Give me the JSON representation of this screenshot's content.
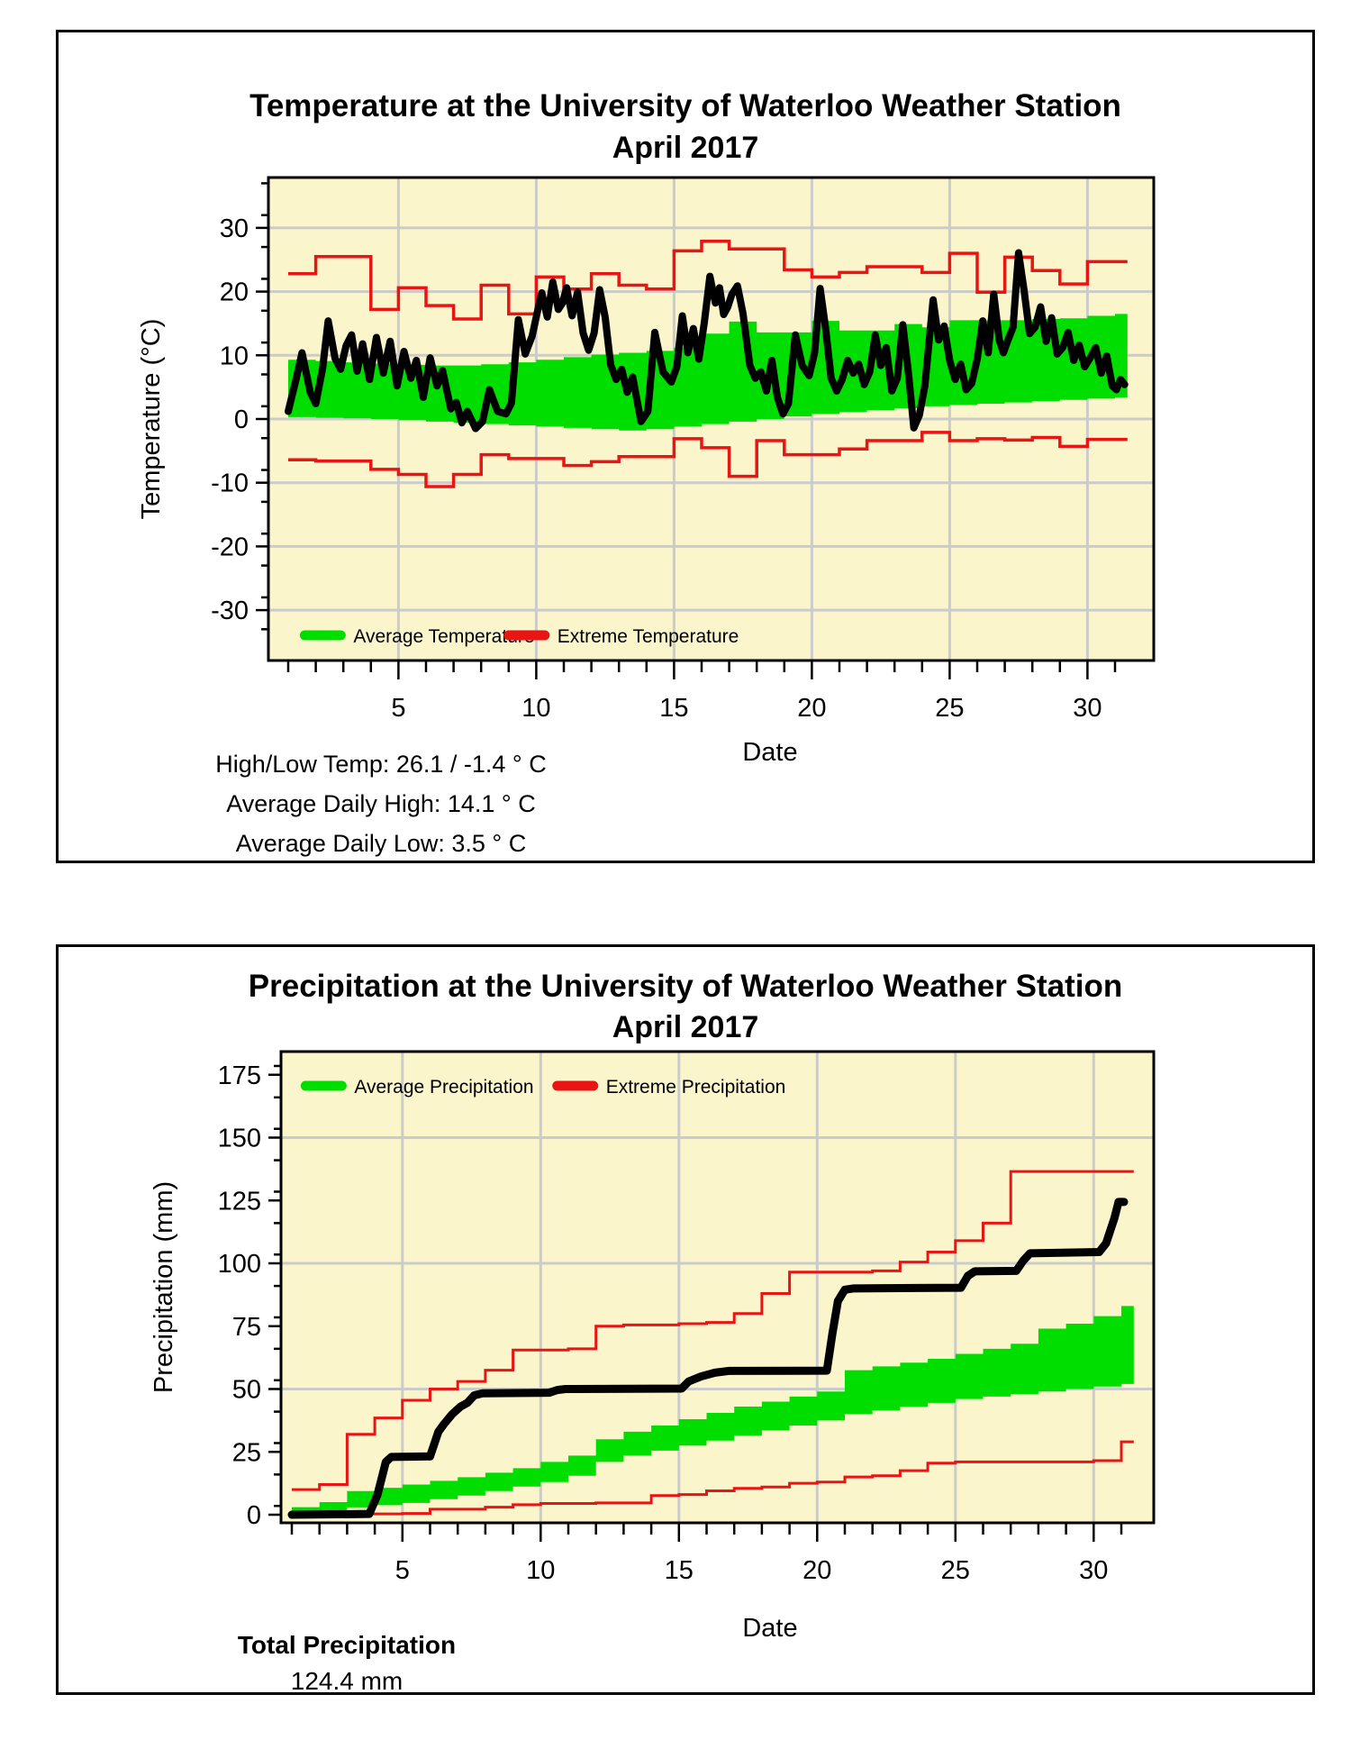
{
  "colors": {
    "plot_bg": "#FBF5CC",
    "grid": "#CBCBCB",
    "average_green": "#00DE00",
    "extreme_red": "#E91414",
    "actual_black": "#000000",
    "axis_black": "#000000"
  },
  "chart_data": [
    {
      "type": "line",
      "title_line1": "Temperature at the University of Waterloo Weather Station",
      "title_line2": "April 2017",
      "xlabel": "Date",
      "ylabel": "Temperature (°C)",
      "ylim": [
        -38,
        38
      ],
      "xlim": [
        1,
        31
      ],
      "yticks": [
        -30,
        -20,
        -10,
        0,
        10,
        20,
        30
      ],
      "yminor_step": 5,
      "xticks_major": [
        5,
        10,
        15,
        20,
        25,
        30
      ],
      "grid": "on",
      "legend_position": "bottom-inside",
      "legend": [
        {
          "label": "Average Temperature",
          "color": "average_green"
        },
        {
          "label": "Extreme Temperature",
          "color": "extreme_red"
        }
      ],
      "days": [
        1,
        2,
        3,
        4,
        5,
        6,
        7,
        8,
        9,
        10,
        11,
        12,
        13,
        14,
        15,
        16,
        17,
        18,
        19,
        20,
        21,
        22,
        23,
        24,
        25,
        26,
        27,
        28,
        29,
        30,
        31
      ],
      "normal_low": [
        0.3,
        0.2,
        0.1,
        0.0,
        -0.2,
        -0.4,
        -0.6,
        -0.8,
        -1.0,
        -1.2,
        -1.4,
        -1.6,
        -1.8,
        -1.6,
        -1.2,
        -0.8,
        -0.4,
        0.0,
        0.4,
        0.8,
        1.1,
        1.4,
        1.7,
        2.0,
        2.2,
        2.4,
        2.6,
        2.8,
        3.0,
        3.2,
        3.4
      ],
      "normal_high": [
        9.3,
        9.1,
        8.9,
        8.7,
        8.5,
        8.4,
        8.4,
        8.6,
        8.9,
        9.3,
        9.7,
        10.1,
        10.4,
        10.7,
        11.2,
        13.4,
        15.3,
        13.6,
        13.6,
        15.4,
        13.9,
        13.9,
        14.9,
        14.4,
        15.5,
        15.5,
        15.5,
        15.7,
        15.8,
        16.2,
        16.5
      ],
      "extreme_high": [
        22.8,
        25.5,
        25.5,
        17.2,
        20.6,
        17.8,
        15.7,
        21.0,
        16.5,
        22.3,
        20.4,
        22.8,
        21.0,
        20.4,
        26.4,
        27.9,
        26.7,
        26.7,
        23.4,
        22.3,
        23.0,
        23.9,
        23.9,
        23.0,
        26.0,
        19.9,
        25.4,
        23.3,
        21.2,
        24.7,
        24.7
      ],
      "extreme_low": [
        -6.4,
        -6.6,
        -6.6,
        -7.9,
        -8.7,
        -10.6,
        -8.7,
        -5.6,
        -6.2,
        -6.2,
        -7.3,
        -6.7,
        -5.9,
        -5.9,
        -3.1,
        -4.5,
        -9.0,
        -3.4,
        -5.6,
        -5.6,
        -4.7,
        -3.4,
        -3.4,
        -2.1,
        -3.4,
        -3.1,
        -3.3,
        -2.9,
        -4.3,
        -3.2,
        -3.2
      ],
      "actual": [
        [
          1.0,
          1.2
        ],
        [
          1.3,
          6.5
        ],
        [
          1.5,
          10.4
        ],
        [
          1.8,
          4.2
        ],
        [
          2.0,
          2.4
        ],
        [
          2.25,
          8.0
        ],
        [
          2.45,
          15.4
        ],
        [
          2.7,
          9.5
        ],
        [
          2.9,
          7.8
        ],
        [
          3.1,
          11.5
        ],
        [
          3.3,
          13.2
        ],
        [
          3.5,
          7.5
        ],
        [
          3.7,
          11.8
        ],
        [
          3.95,
          6.2
        ],
        [
          4.2,
          12.8
        ],
        [
          4.45,
          7.2
        ],
        [
          4.7,
          12.2
        ],
        [
          4.95,
          5.2
        ],
        [
          5.2,
          10.6
        ],
        [
          5.45,
          6.4
        ],
        [
          5.65,
          9.2
        ],
        [
          5.9,
          3.4
        ],
        [
          6.15,
          9.6
        ],
        [
          6.4,
          5.2
        ],
        [
          6.6,
          7.6
        ],
        [
          6.9,
          1.6
        ],
        [
          7.1,
          2.6
        ],
        [
          7.3,
          -0.6
        ],
        [
          7.5,
          1.2
        ],
        [
          7.8,
          -1.5
        ],
        [
          8.05,
          -0.4
        ],
        [
          8.3,
          4.6
        ],
        [
          8.6,
          1.2
        ],
        [
          8.9,
          0.8
        ],
        [
          9.1,
          2.5
        ],
        [
          9.35,
          15.6
        ],
        [
          9.6,
          10.2
        ],
        [
          9.85,
          13.0
        ],
        [
          10.05,
          17.0
        ],
        [
          10.2,
          19.8
        ],
        [
          10.4,
          16.0
        ],
        [
          10.6,
          21.5
        ],
        [
          10.8,
          17.2
        ],
        [
          10.95,
          18.2
        ],
        [
          11.1,
          20.6
        ],
        [
          11.3,
          16.2
        ],
        [
          11.5,
          19.9
        ],
        [
          11.7,
          13.5
        ],
        [
          11.9,
          10.8
        ],
        [
          12.1,
          13.5
        ],
        [
          12.3,
          20.3
        ],
        [
          12.5,
          16.0
        ],
        [
          12.7,
          8.5
        ],
        [
          12.9,
          6.2
        ],
        [
          13.1,
          7.8
        ],
        [
          13.3,
          4.2
        ],
        [
          13.5,
          6.6
        ],
        [
          13.8,
          -0.4
        ],
        [
          14.05,
          1.2
        ],
        [
          14.3,
          13.6
        ],
        [
          14.6,
          7.4
        ],
        [
          14.9,
          5.8
        ],
        [
          15.1,
          8.2
        ],
        [
          15.3,
          16.2
        ],
        [
          15.5,
          10.4
        ],
        [
          15.7,
          14.2
        ],
        [
          15.9,
          9.4
        ],
        [
          16.1,
          15.2
        ],
        [
          16.3,
          22.4
        ],
        [
          16.5,
          18.2
        ],
        [
          16.65,
          20.6
        ],
        [
          16.8,
          16.4
        ],
        [
          16.95,
          17.6
        ],
        [
          17.1,
          19.6
        ],
        [
          17.3,
          20.9
        ],
        [
          17.5,
          16.6
        ],
        [
          17.75,
          8.4
        ],
        [
          17.95,
          6.4
        ],
        [
          18.15,
          7.4
        ],
        [
          18.35,
          4.4
        ],
        [
          18.55,
          9.2
        ],
        [
          18.75,
          3.4
        ],
        [
          18.95,
          0.8
        ],
        [
          19.15,
          2.4
        ],
        [
          19.4,
          13.2
        ],
        [
          19.65,
          8.4
        ],
        [
          19.9,
          6.8
        ],
        [
          20.1,
          10.4
        ],
        [
          20.3,
          20.5
        ],
        [
          20.5,
          14.2
        ],
        [
          20.7,
          6.4
        ],
        [
          20.9,
          4.4
        ],
        [
          21.1,
          6.2
        ],
        [
          21.3,
          9.2
        ],
        [
          21.5,
          7.2
        ],
        [
          21.7,
          8.6
        ],
        [
          21.9,
          5.4
        ],
        [
          22.1,
          7.4
        ],
        [
          22.3,
          13.2
        ],
        [
          22.5,
          8.4
        ],
        [
          22.7,
          11.2
        ],
        [
          22.9,
          4.4
        ],
        [
          23.1,
          6.4
        ],
        [
          23.3,
          14.8
        ],
        [
          23.5,
          7.4
        ],
        [
          23.7,
          -1.4
        ],
        [
          23.9,
          0.6
        ],
        [
          24.1,
          5.2
        ],
        [
          24.4,
          18.7
        ],
        [
          24.6,
          12.4
        ],
        [
          24.8,
          14.6
        ],
        [
          25.0,
          9.2
        ],
        [
          25.2,
          6.2
        ],
        [
          25.4,
          8.6
        ],
        [
          25.6,
          4.6
        ],
        [
          25.8,
          5.6
        ],
        [
          26.0,
          9.4
        ],
        [
          26.2,
          15.4
        ],
        [
          26.4,
          10.4
        ],
        [
          26.6,
          19.6
        ],
        [
          26.8,
          12.4
        ],
        [
          26.95,
          10.4
        ],
        [
          27.1,
          12.2
        ],
        [
          27.3,
          14.4
        ],
        [
          27.5,
          26.1
        ],
        [
          27.7,
          20.2
        ],
        [
          27.9,
          13.4
        ],
        [
          28.1,
          14.4
        ],
        [
          28.3,
          17.6
        ],
        [
          28.5,
          12.2
        ],
        [
          28.7,
          15.9
        ],
        [
          28.9,
          10.2
        ],
        [
          29.1,
          11.2
        ],
        [
          29.3,
          13.6
        ],
        [
          29.5,
          9.2
        ],
        [
          29.7,
          11.6
        ],
        [
          29.9,
          8.2
        ],
        [
          30.1,
          9.6
        ],
        [
          30.3,
          11.2
        ],
        [
          30.5,
          7.2
        ],
        [
          30.7,
          9.9
        ],
        [
          30.9,
          5.2
        ],
        [
          31.05,
          4.6
        ],
        [
          31.2,
          6.2
        ],
        [
          31.35,
          5.4
        ]
      ],
      "stats": [
        "High/Low Temp:  26.1 / -1.4 ° C",
        "Average Daily High:  14.1 ° C",
        "Average Daily Low:  3.5 ° C"
      ]
    },
    {
      "type": "line",
      "title_line1": "Precipitation at the University of Waterloo Weather Station",
      "title_line2": "April 2017",
      "xlabel": "Date",
      "ylabel": "Precipitation (mm)",
      "ylim": [
        -9,
        179
      ],
      "xlim": [
        1,
        31
      ],
      "yticks": [
        0,
        25,
        50,
        75,
        100,
        125,
        150,
        175
      ],
      "gridlines_y": [
        50,
        100,
        150
      ],
      "xticks_major": [
        5,
        10,
        15,
        20,
        25,
        30
      ],
      "grid": "on",
      "legend_position": "top-inside",
      "legend": [
        {
          "label": "Average Precipitation",
          "color": "average_green"
        },
        {
          "label": "Extreme Precipitation",
          "color": "extreme_red"
        }
      ],
      "days": [
        1,
        2,
        3,
        4,
        5,
        6,
        7,
        8,
        9,
        10,
        11,
        12,
        13,
        14,
        15,
        16,
        17,
        18,
        19,
        20,
        21,
        22,
        23,
        24,
        25,
        26,
        27,
        28,
        29,
        30,
        31
      ],
      "normal_low": [
        0.5,
        1.5,
        2.9,
        3.8,
        4.7,
        6.2,
        7.6,
        9.4,
        11.2,
        13.0,
        15.5,
        21.0,
        23.5,
        25.5,
        27.5,
        29.5,
        31.5,
        33.5,
        35.5,
        37.5,
        40.0,
        41.5,
        43.0,
        44.5,
        46.0,
        47.0,
        48.0,
        49.0,
        50.0,
        51.0,
        52.0
      ],
      "normal_high": [
        3.0,
        5.0,
        9.4,
        10.7,
        12.0,
        13.5,
        14.9,
        16.7,
        18.5,
        21.0,
        23.5,
        30.0,
        33.0,
        35.5,
        38.0,
        40.5,
        43.0,
        45.0,
        47.0,
        49.0,
        57.5,
        59.0,
        60.5,
        62.0,
        64.0,
        66.0,
        68.0,
        74.0,
        76.0,
        79.0,
        83.0
      ],
      "extreme_high": [
        10,
        12,
        32,
        38.5,
        45.5,
        50,
        53,
        57.5,
        65.5,
        65.5,
        66,
        75,
        75.5,
        75.5,
        76,
        76.5,
        80,
        88,
        96.5,
        96.5,
        96.5,
        97,
        100.5,
        104.5,
        109,
        116,
        136.5,
        136.5,
        136.5,
        136.5,
        136.5
      ],
      "extreme_low": [
        0.3,
        0.3,
        0.3,
        0.3,
        0.5,
        2.2,
        2.2,
        3.0,
        4.0,
        4.5,
        4.5,
        4.7,
        4.7,
        7.6,
        8.0,
        9.5,
        10.5,
        11.0,
        12.5,
        13.0,
        15.0,
        15.5,
        17.5,
        20.5,
        21.0,
        21.0,
        21.0,
        21.0,
        21.0,
        21.5,
        29.0
      ],
      "actual": [
        [
          1.0,
          0.0
        ],
        [
          3.8,
          0.3
        ],
        [
          4.1,
          8.0
        ],
        [
          4.4,
          21.0
        ],
        [
          4.6,
          23.0
        ],
        [
          6.0,
          23.2
        ],
        [
          6.3,
          33.0
        ],
        [
          6.5,
          36.0
        ],
        [
          6.8,
          40.0
        ],
        [
          7.1,
          43.0
        ],
        [
          7.35,
          44.5
        ],
        [
          7.6,
          47.5
        ],
        [
          7.9,
          48.3
        ],
        [
          10.3,
          48.5
        ],
        [
          10.6,
          49.6
        ],
        [
          10.9,
          50.0
        ],
        [
          15.1,
          50.2
        ],
        [
          15.35,
          53.0
        ],
        [
          15.8,
          55.0
        ],
        [
          16.3,
          56.5
        ],
        [
          16.8,
          57.2
        ],
        [
          20.35,
          57.3
        ],
        [
          20.55,
          72.0
        ],
        [
          20.75,
          85.0
        ],
        [
          21.0,
          89.5
        ],
        [
          21.3,
          90.0
        ],
        [
          25.2,
          90.3
        ],
        [
          25.45,
          95.0
        ],
        [
          25.7,
          96.8
        ],
        [
          27.2,
          97.0
        ],
        [
          27.45,
          101.0
        ],
        [
          27.7,
          104.0
        ],
        [
          30.2,
          104.5
        ],
        [
          30.45,
          108.0
        ],
        [
          30.6,
          113.0
        ],
        [
          30.75,
          118.0
        ],
        [
          30.9,
          124.4
        ],
        [
          31.1,
          124.4
        ]
      ],
      "stats_title": "Total Precipitation",
      "stats_value": "124.4 mm"
    }
  ]
}
